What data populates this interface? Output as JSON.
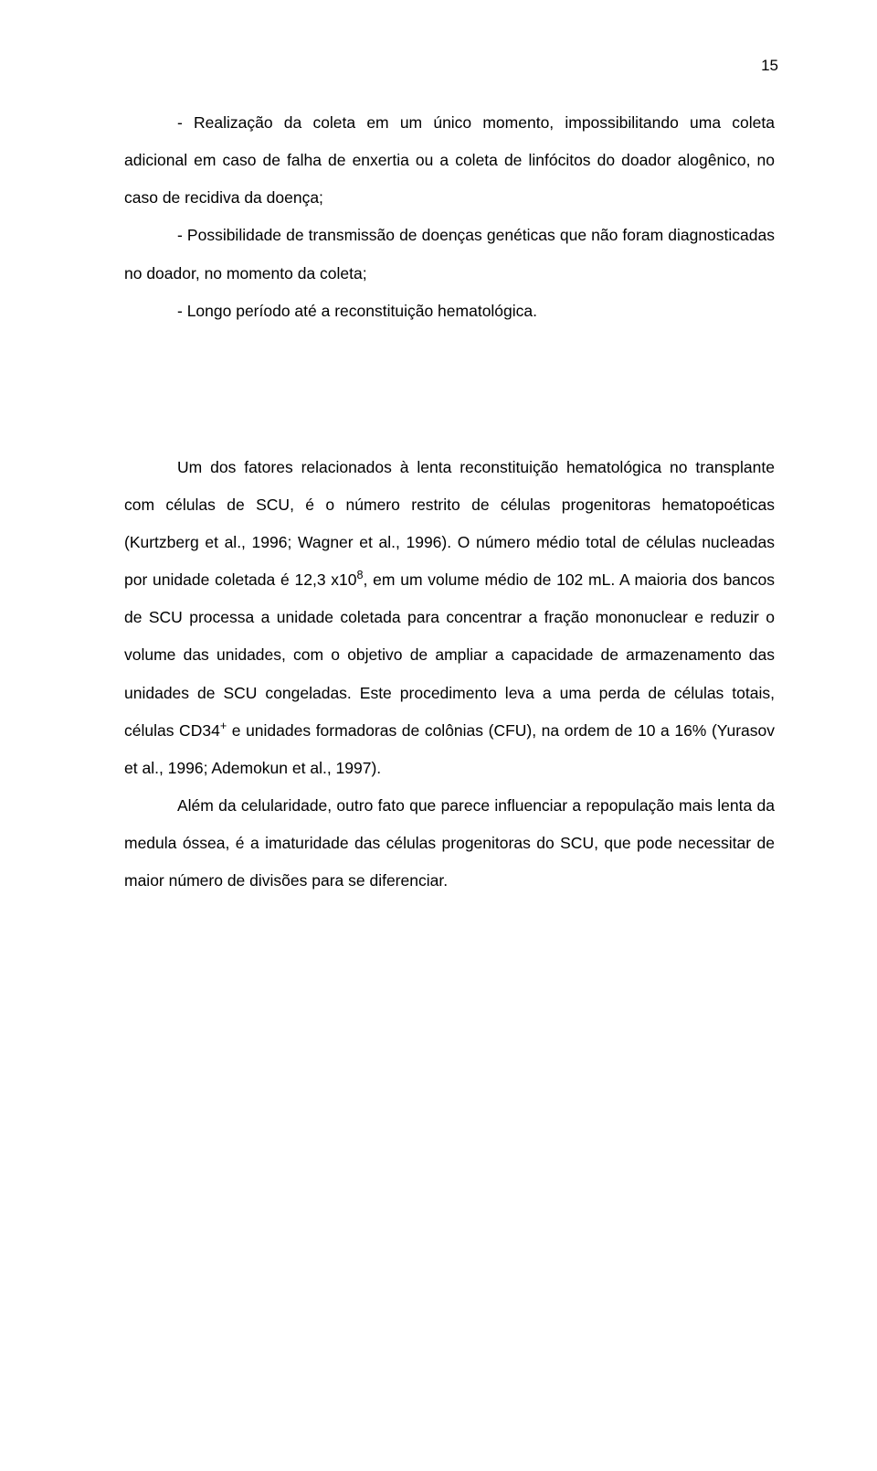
{
  "page_number": "15",
  "bullets": [
    "- Realização da coleta em um único momento, impossibilitando uma coleta adicional em caso de falha de enxertia ou a coleta de linfócitos do doador alogênico, no caso de recidiva da doença;",
    "- Possibilidade de transmissão de doenças genéticas que não foram diagnosticadas no doador, no momento da coleta;",
    "- Longo período até a reconstituição hematológica."
  ],
  "para1": {
    "pre": "Um dos fatores relacionados à lenta reconstituição hematológica no transplante com células de SCU, é o número restrito de células progenitoras hematopoéticas (Kurtzberg et al., 1996; Wagner et al., 1996). O número médio total de células nucleadas por unidade coletada é 12,3 x10",
    "sup1": "8",
    "mid": ", em um volume médio de 102 mL. A maioria dos bancos de SCU processa a unidade coletada para concentrar a fração mononuclear e reduzir o volume das unidades, com o objetivo de ampliar a capacidade de armazenamento das unidades de SCU congeladas. Este procedimento leva a uma perda de células totais, células CD34",
    "sup2": "+",
    "post": " e unidades formadoras de colônias (CFU), na ordem de 10 a 16% (Yurasov et al., 1996; Ademokun et al., 1997)."
  },
  "para2": "Além da celularidade, outro fato que parece influenciar a repopulação mais lenta da medula óssea, é a imaturidade das células progenitoras do SCU, que pode necessitar de maior número de divisões para se diferenciar."
}
